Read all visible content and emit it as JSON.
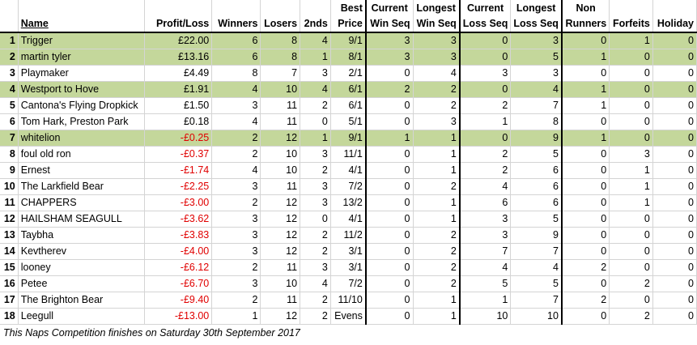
{
  "headers": {
    "row1": {
      "best": "Best",
      "current_win": "Current",
      "longest_win": "Longest",
      "current_loss": "Current",
      "longest_loss": "Longest",
      "non": "Non"
    },
    "row2": {
      "name": "Name",
      "profit": "Profit/Loss",
      "winners": "Winners",
      "losers": "Losers",
      "seconds": "2nds",
      "price": "Price",
      "win_seq": "Win Seq",
      "win_seq2": "Win Seq",
      "loss_seq": "Loss Seq",
      "loss_seq2": "Loss Seq",
      "runners": "Runners",
      "forfeits": "Forfeits",
      "holiday": "Holiday"
    }
  },
  "rows": [
    {
      "rank": "1",
      "name": "Trigger",
      "profit": "£22.00",
      "winners": "6",
      "losers": "8",
      "seconds": "4",
      "price": "9/1",
      "cws": "3",
      "lws": "3",
      "cls": "0",
      "lls": "3",
      "nr": "0",
      "forf": "1",
      "hol": "0",
      "hl": true,
      "neg": false
    },
    {
      "rank": "2",
      "name": "martin tyler",
      "profit": "£13.16",
      "winners": "6",
      "losers": "8",
      "seconds": "1",
      "price": "8/1",
      "cws": "3",
      "lws": "3",
      "cls": "0",
      "lls": "5",
      "nr": "1",
      "forf": "0",
      "hol": "0",
      "hl": true,
      "neg": false
    },
    {
      "rank": "3",
      "name": "Playmaker",
      "profit": "£4.49",
      "winners": "8",
      "losers": "7",
      "seconds": "3",
      "price": "2/1",
      "cws": "0",
      "lws": "4",
      "cls": "3",
      "lls": "3",
      "nr": "0",
      "forf": "0",
      "hol": "0",
      "hl": false,
      "neg": false
    },
    {
      "rank": "4",
      "name": "Westport to Hove",
      "profit": "£1.91",
      "winners": "4",
      "losers": "10",
      "seconds": "4",
      "price": "6/1",
      "cws": "2",
      "lws": "2",
      "cls": "0",
      "lls": "4",
      "nr": "1",
      "forf": "0",
      "hol": "0",
      "hl": true,
      "neg": false
    },
    {
      "rank": "5",
      "name": "Cantona's Flying Dropkick",
      "profit": "£1.50",
      "winners": "3",
      "losers": "11",
      "seconds": "2",
      "price": "6/1",
      "cws": "0",
      "lws": "2",
      "cls": "2",
      "lls": "7",
      "nr": "1",
      "forf": "0",
      "hol": "0",
      "hl": false,
      "neg": false
    },
    {
      "rank": "6",
      "name": "Tom Hark, Preston Park",
      "profit": "£0.18",
      "winners": "4",
      "losers": "11",
      "seconds": "0",
      "price": "5/1",
      "cws": "0",
      "lws": "3",
      "cls": "1",
      "lls": "8",
      "nr": "0",
      "forf": "0",
      "hol": "0",
      "hl": false,
      "neg": false
    },
    {
      "rank": "7",
      "name": "whitelion",
      "profit": "-£0.25",
      "winners": "2",
      "losers": "12",
      "seconds": "1",
      "price": "9/1",
      "cws": "1",
      "lws": "1",
      "cls": "0",
      "lls": "9",
      "nr": "1",
      "forf": "0",
      "hol": "0",
      "hl": true,
      "neg": true
    },
    {
      "rank": "8",
      "name": "foul old ron",
      "profit": "-£0.37",
      "winners": "2",
      "losers": "10",
      "seconds": "3",
      "price": "11/1",
      "cws": "0",
      "lws": "1",
      "cls": "2",
      "lls": "5",
      "nr": "0",
      "forf": "3",
      "hol": "0",
      "hl": false,
      "neg": true
    },
    {
      "rank": "9",
      "name": "Ernest",
      "profit": "-£1.74",
      "winners": "4",
      "losers": "10",
      "seconds": "2",
      "price": "4/1",
      "cws": "0",
      "lws": "1",
      "cls": "2",
      "lls": "6",
      "nr": "0",
      "forf": "1",
      "hol": "0",
      "hl": false,
      "neg": true
    },
    {
      "rank": "10",
      "name": "The Larkfield Bear",
      "profit": "-£2.25",
      "winners": "3",
      "losers": "11",
      "seconds": "3",
      "price": "7/2",
      "cws": "0",
      "lws": "2",
      "cls": "4",
      "lls": "6",
      "nr": "0",
      "forf": "1",
      "hol": "0",
      "hl": false,
      "neg": true
    },
    {
      "rank": "11",
      "name": "CHAPPERS",
      "profit": "-£3.00",
      "winners": "2",
      "losers": "12",
      "seconds": "3",
      "price": "13/2",
      "cws": "0",
      "lws": "1",
      "cls": "6",
      "lls": "6",
      "nr": "0",
      "forf": "1",
      "hol": "0",
      "hl": false,
      "neg": true
    },
    {
      "rank": "12",
      "name": "HAILSHAM SEAGULL",
      "profit": "-£3.62",
      "winners": "3",
      "losers": "12",
      "seconds": "0",
      "price": "4/1",
      "cws": "0",
      "lws": "1",
      "cls": "3",
      "lls": "5",
      "nr": "0",
      "forf": "0",
      "hol": "0",
      "hl": false,
      "neg": true
    },
    {
      "rank": "13",
      "name": "Taybha",
      "profit": "-£3.83",
      "winners": "3",
      "losers": "12",
      "seconds": "2",
      "price": "11/2",
      "cws": "0",
      "lws": "2",
      "cls": "3",
      "lls": "9",
      "nr": "0",
      "forf": "0",
      "hol": "0",
      "hl": false,
      "neg": true
    },
    {
      "rank": "14",
      "name": "Kevtherev",
      "profit": "-£4.00",
      "winners": "3",
      "losers": "12",
      "seconds": "2",
      "price": "3/1",
      "cws": "0",
      "lws": "2",
      "cls": "7",
      "lls": "7",
      "nr": "0",
      "forf": "0",
      "hol": "0",
      "hl": false,
      "neg": true
    },
    {
      "rank": "15",
      "name": "looney",
      "profit": "-£6.12",
      "winners": "2",
      "losers": "11",
      "seconds": "3",
      "price": "3/1",
      "cws": "0",
      "lws": "2",
      "cls": "4",
      "lls": "4",
      "nr": "2",
      "forf": "0",
      "hol": "0",
      "hl": false,
      "neg": true
    },
    {
      "rank": "16",
      "name": "Petee",
      "profit": "-£6.70",
      "winners": "3",
      "losers": "10",
      "seconds": "4",
      "price": "7/2",
      "cws": "0",
      "lws": "2",
      "cls": "5",
      "lls": "5",
      "nr": "0",
      "forf": "2",
      "hol": "0",
      "hl": false,
      "neg": true
    },
    {
      "rank": "17",
      "name": "The Brighton Bear",
      "profit": "-£9.40",
      "winners": "2",
      "losers": "11",
      "seconds": "2",
      "price": "11/10",
      "cws": "0",
      "lws": "1",
      "cls": "1",
      "lls": "7",
      "nr": "2",
      "forf": "0",
      "hol": "0",
      "hl": false,
      "neg": true
    },
    {
      "rank": "18",
      "name": "Leegull",
      "profit": "-£13.00",
      "winners": "1",
      "losers": "12",
      "seconds": "2",
      "price": "Evens",
      "cws": "0",
      "lws": "1",
      "cls": "10",
      "lls": "10",
      "nr": "0",
      "forf": "2",
      "hol": "0",
      "hl": false,
      "neg": true
    }
  ],
  "footer": "This Naps Competition finishes on Saturday 30th September 2017",
  "colors": {
    "highlight": "#c4d79b",
    "negative": "#e00000"
  }
}
